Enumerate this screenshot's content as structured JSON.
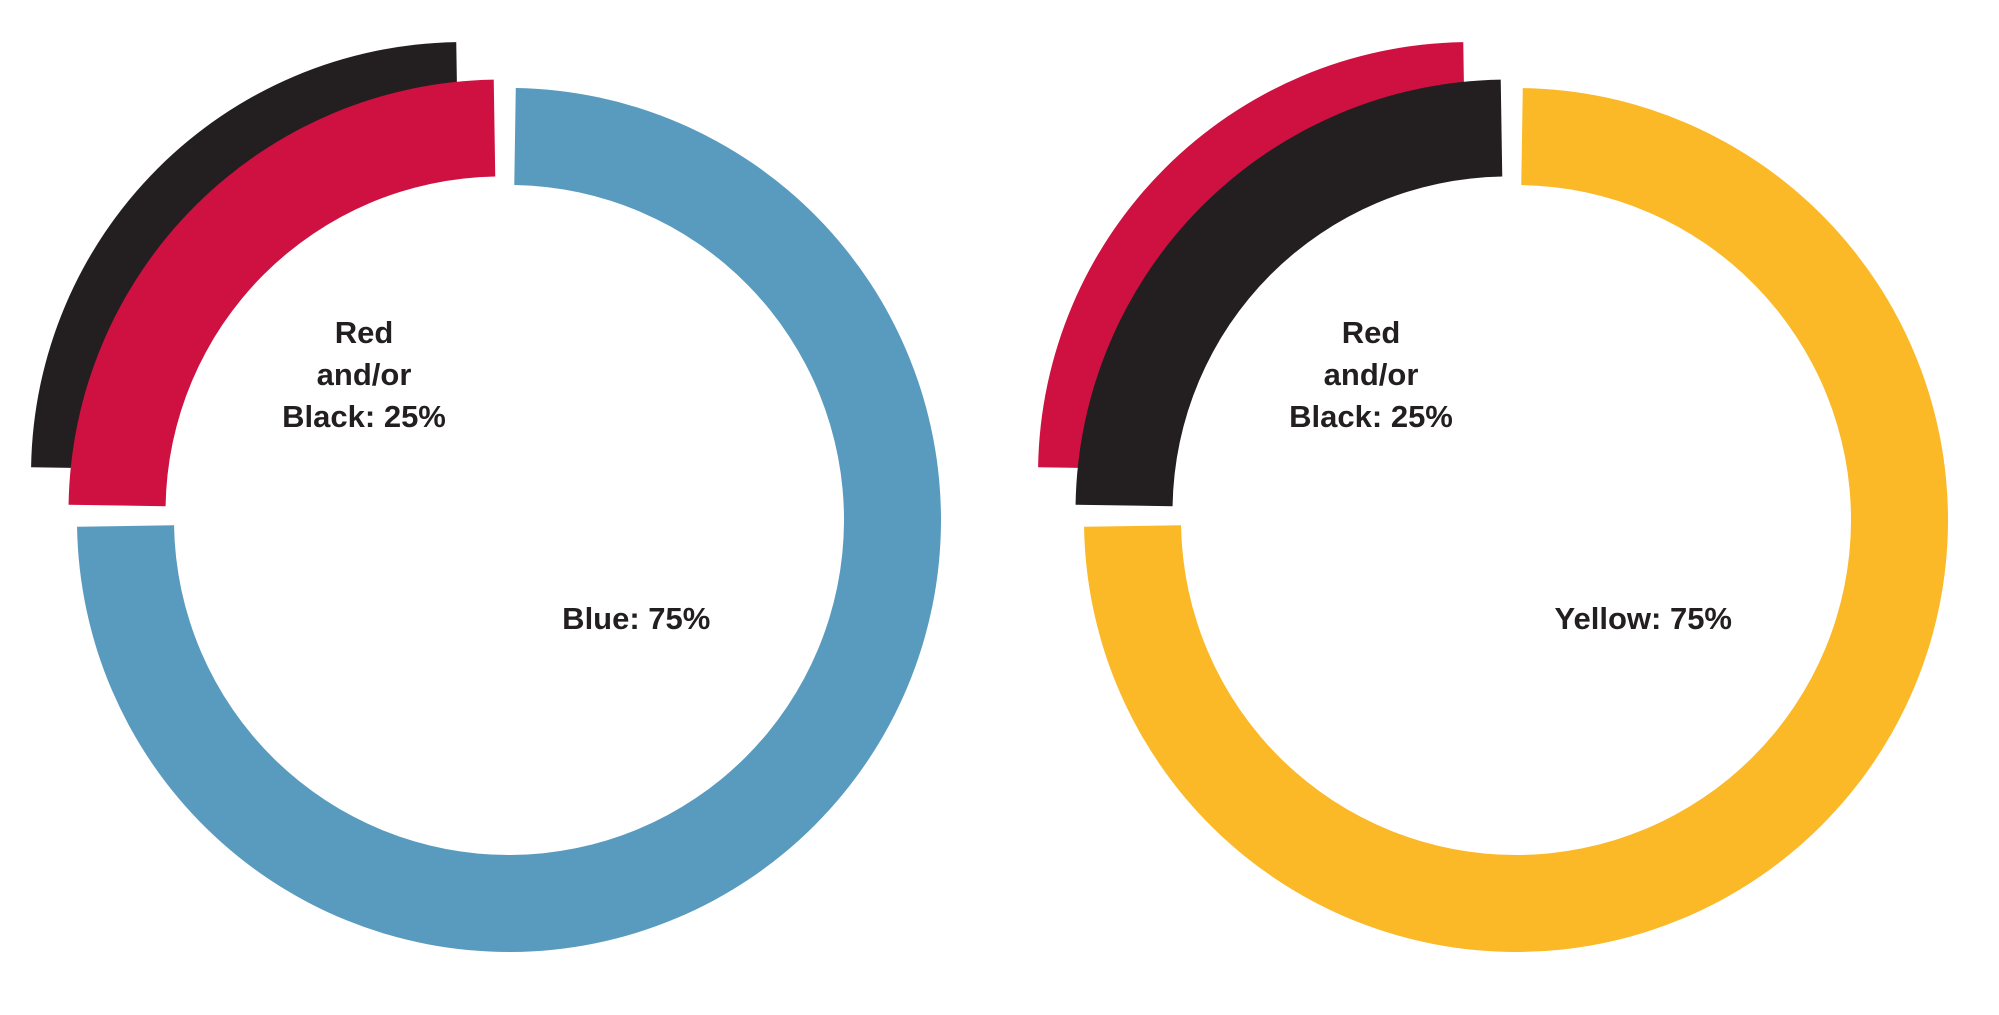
{
  "chart_data": [
    {
      "type": "donut",
      "values": [
        75,
        25
      ],
      "value_labels": [
        "Blue: 75%",
        "Red\nand/or\nBlack: 25%"
      ],
      "colors": [
        "#589bbf",
        [
          "#ce1141",
          "#231f20"
        ]
      ]
    },
    {
      "type": "donut",
      "values": [
        75,
        25
      ],
      "value_labels": [
        "Yellow: 75%",
        "Red\nand/or\nBlack: 25%"
      ],
      "colors": [
        "#fbb827",
        [
          "#231f20",
          "#ce1141"
        ]
      ]
    }
  ]
}
